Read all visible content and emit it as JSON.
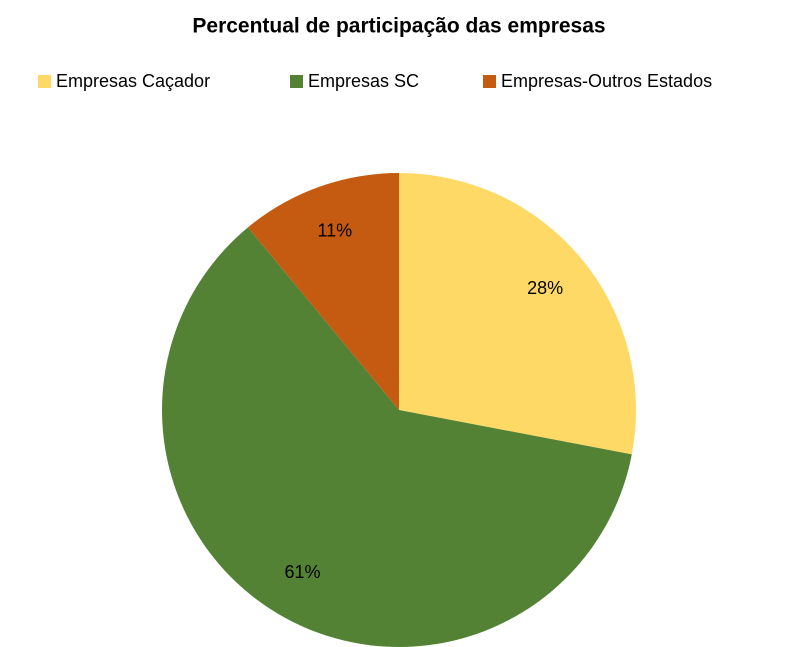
{
  "chart_data": {
    "type": "pie",
    "title": "Percentual de participação das empresas",
    "categories": [
      "Empresas Caçador",
      "Empresas SC",
      "Empresas-Outros Estados"
    ],
    "values": [
      28,
      61,
      11
    ],
    "value_labels": [
      "28%",
      "61%",
      "11%"
    ],
    "colors": [
      "#ffd966",
      "#548235",
      "#c55a11"
    ],
    "legend": "top"
  }
}
